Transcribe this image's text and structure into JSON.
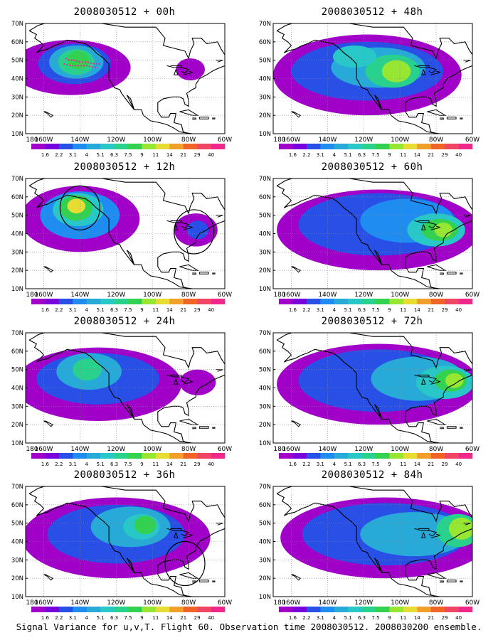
{
  "colorbar": {
    "labels": [
      "1.6",
      "2.2",
      "3.1",
      "4",
      "5.1",
      "6.3",
      "7.5",
      "9",
      "11",
      "14",
      "21",
      "29",
      "40"
    ],
    "colors": [
      "#ffffff",
      "#a000c8",
      "#7800dc",
      "#2850e6",
      "#1e8cf0",
      "#28aad8",
      "#28c8c8",
      "#28d28c",
      "#32d250",
      "#96e632",
      "#e6dc32",
      "#f0a028",
      "#f06428",
      "#f04664",
      "#f0288c"
    ]
  },
  "axes": {
    "lat_labels": [
      "70N",
      "60N",
      "50N",
      "40N",
      "30N",
      "20N",
      "10N"
    ],
    "lon_labels": [
      "180",
      "160W",
      "140W",
      "120W",
      "100W",
      "80W",
      "60W"
    ]
  },
  "panels": [
    {
      "title": "2008030512 + 00h",
      "circles": [],
      "flight_track": true
    },
    {
      "title": "2008030512 + 48h",
      "circles": []
    },
    {
      "title": "2008030512 + 12h",
      "circles": [
        {
          "lon": -140,
          "lat": 54
        },
        {
          "lon": -77,
          "lat": 41
        }
      ]
    },
    {
      "title": "2008030512 + 60h",
      "circles": []
    },
    {
      "title": "2008030512 + 24h",
      "circles": []
    },
    {
      "title": "2008030512 + 72h",
      "circles": []
    },
    {
      "title": "2008030512 + 36h",
      "circles": [
        {
          "lon": -82,
          "lat": 28
        }
      ]
    },
    {
      "title": "2008030512 + 84h",
      "circles": []
    }
  ],
  "caption": "Signal Variance for u,v,T. Flight 60. Observation time 2008030512. 2008030200 ensemble."
}
